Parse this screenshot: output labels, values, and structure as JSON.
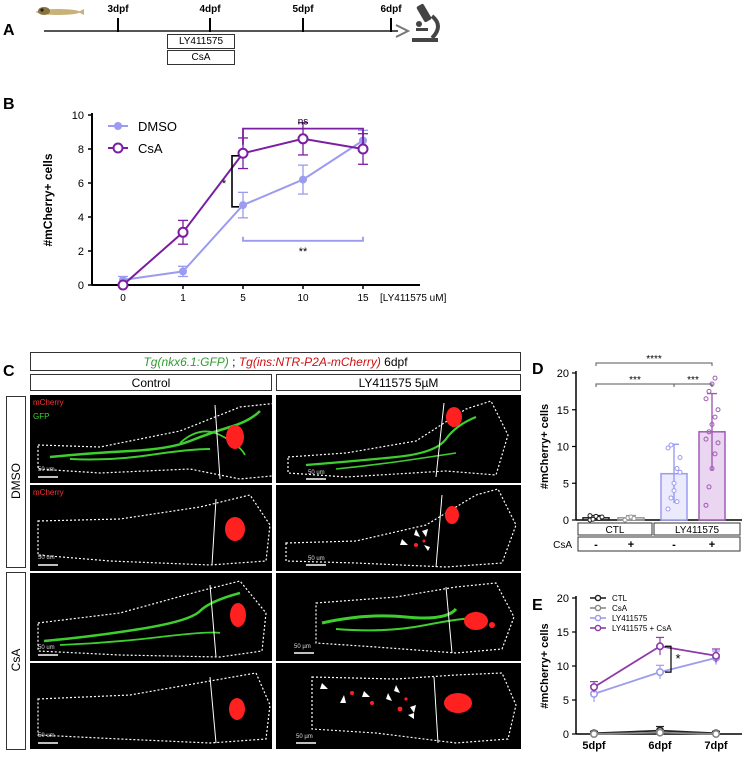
{
  "panel_letters": {
    "A": "A",
    "B": "B",
    "C": "C",
    "D": "D",
    "E": "E"
  },
  "timeline": {
    "ticks": [
      "3dpf",
      "4dpf",
      "5dpf",
      "6dpf"
    ],
    "treatments": [
      "LY411575",
      "CsA"
    ]
  },
  "panel_c": {
    "header_part1": "Tg(nkx6.1:GFP)",
    "header_sep": " ; ",
    "header_part2": "Tg(ins:NTR-P2A-mCherry)",
    "header_stage": " 6dpf",
    "col_control": "Control",
    "col_ly": "LY411575 5µM",
    "row_dmso": "DMSO",
    "row_csa": "CsA",
    "mcherry": "mCherry",
    "gfp": "GFP",
    "scale_bar": "50 um",
    "scale_bar_alt": "50 µm",
    "colors": {
      "gfp": "#3ecf2e",
      "mcherry": "#ff2020",
      "outline": "#ffffff"
    }
  },
  "chart_data": [
    {
      "panel": "B",
      "type": "line",
      "ylabel": "#mCherry+ cells",
      "xlabel": "[LY411575 uM]",
      "categories": [
        "0",
        "1",
        "5",
        "10",
        "15"
      ],
      "ylim": [
        0,
        10
      ],
      "yticks": [
        0,
        2,
        4,
        6,
        8,
        10
      ],
      "series": [
        {
          "name": "DMSO",
          "color": "#9b9bf0",
          "values": [
            0.3,
            0.8,
            4.7,
            6.2,
            8.5
          ],
          "errors": [
            0.2,
            0.3,
            0.75,
            0.85,
            0.6
          ],
          "marker": "filled"
        },
        {
          "name": "CsA",
          "color": "#7b1fa2",
          "values": [
            0.0,
            3.1,
            7.75,
            8.6,
            8.0
          ],
          "errors": [
            0.1,
            0.7,
            0.9,
            0.95,
            0.9
          ],
          "marker": "open"
        }
      ],
      "annotations": [
        "ns",
        "**",
        "*"
      ],
      "legend": "top-left"
    },
    {
      "panel": "D",
      "type": "bar",
      "ylabel": "#mCherry+ cells",
      "categories": [
        "CTL -",
        "CTL +",
        "LY411575 -",
        "LY411575 +"
      ],
      "group_labels": [
        "CTL",
        "LY411575"
      ],
      "csa_row_label": "CsA",
      "csa_signs": [
        "-",
        "+",
        "-",
        "+"
      ],
      "values": [
        0.3,
        0.3,
        6.3,
        12.0
      ],
      "errors": [
        0.3,
        0.3,
        4.0,
        5.2
      ],
      "ylim": [
        0,
        20
      ],
      "yticks": [
        0,
        5,
        10,
        15,
        20
      ],
      "colors": [
        "#222222",
        "#999999",
        "#9b9bf0",
        "#a05bb5"
      ],
      "annotations": [
        "****",
        "***",
        "***"
      ]
    },
    {
      "panel": "E",
      "type": "line",
      "ylabel": "#mCherry+ cells",
      "categories": [
        "5dpf",
        "6dpf",
        "7dpf"
      ],
      "ylim": [
        0,
        20
      ],
      "yticks": [
        0,
        5,
        10,
        15,
        20
      ],
      "series": [
        {
          "name": "CTL",
          "color": "#222222",
          "values": [
            0.1,
            0.5,
            0.1
          ],
          "errors": [
            0.3,
            0.6,
            0.3
          ]
        },
        {
          "name": "CsA",
          "color": "#888888",
          "values": [
            0.0,
            0.2,
            0.0
          ],
          "errors": [
            0.2,
            0.3,
            0.2
          ]
        },
        {
          "name": "LY411575",
          "color": "#9b9bf0",
          "values": [
            5.9,
            9.1,
            11.2
          ],
          "errors": [
            1.2,
            1.0,
            1.0
          ]
        },
        {
          "name": "LY411575 + CsA",
          "color": "#8e3aa8",
          "values": [
            6.9,
            12.9,
            11.5
          ],
          "errors": [
            0.8,
            1.3,
            1.0
          ]
        }
      ],
      "annotations": [
        "*"
      ],
      "legend": "top-left"
    }
  ]
}
